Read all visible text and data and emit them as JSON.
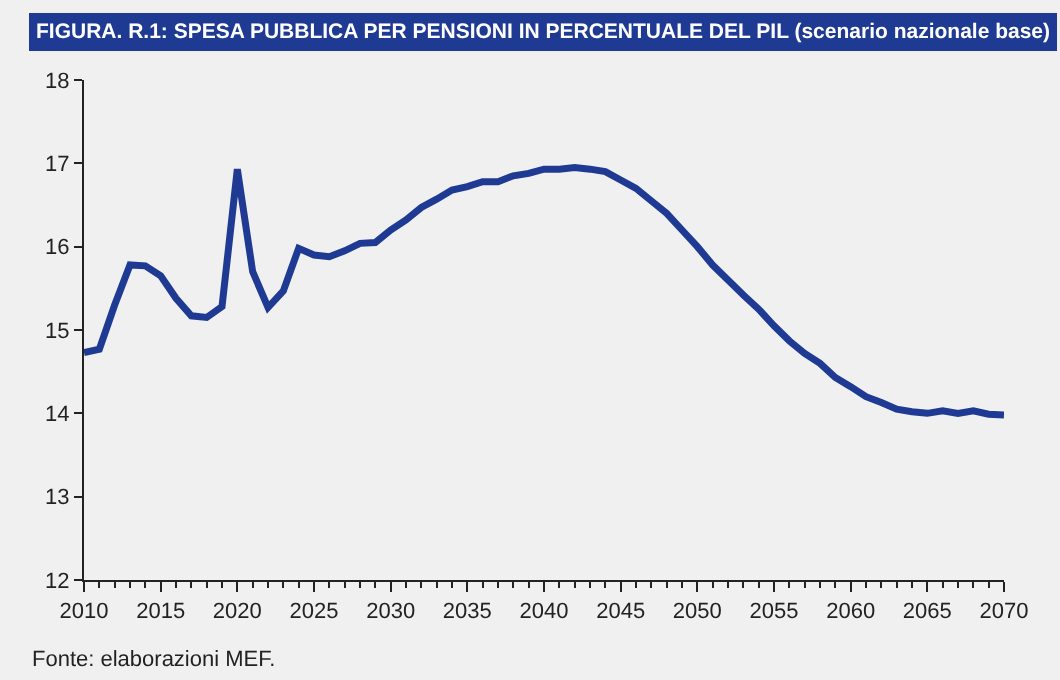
{
  "chart_data": {
    "type": "line",
    "title": "FIGURA. R.1: SPESA PUBBLICA PER PENSIONI IN PERCENTUALE DEL PIL (scenario nazionale base)",
    "x": [
      2010,
      2011,
      2012,
      2013,
      2014,
      2015,
      2016,
      2017,
      2018,
      2019,
      2020,
      2021,
      2022,
      2023,
      2024,
      2025,
      2026,
      2027,
      2028,
      2029,
      2030,
      2031,
      2032,
      2033,
      2034,
      2035,
      2036,
      2037,
      2038,
      2039,
      2040,
      2041,
      2042,
      2043,
      2044,
      2045,
      2046,
      2047,
      2048,
      2049,
      2050,
      2051,
      2052,
      2053,
      2054,
      2055,
      2056,
      2057,
      2058,
      2059,
      2060,
      2061,
      2062,
      2063,
      2064,
      2065,
      2066,
      2067,
      2068,
      2069,
      2070
    ],
    "series": [
      {
        "color": "#1f3a93",
        "values": [
          14.73,
          14.77,
          15.3,
          15.78,
          15.77,
          15.65,
          15.38,
          15.17,
          15.15,
          15.28,
          16.93,
          15.7,
          15.27,
          15.47,
          15.98,
          15.9,
          15.88,
          15.95,
          16.04,
          16.05,
          16.2,
          16.32,
          16.47,
          16.57,
          16.68,
          16.72,
          16.78,
          16.78,
          16.85,
          16.88,
          16.93,
          16.93,
          16.95,
          16.93,
          16.9,
          16.8,
          16.7,
          16.55,
          16.4,
          16.2,
          16.0,
          15.78,
          15.6,
          15.42,
          15.25,
          15.05,
          14.87,
          14.72,
          14.6,
          14.43,
          14.32,
          14.2,
          14.13,
          14.05,
          14.02,
          14.0,
          14.03,
          14.0,
          14.03,
          13.99,
          13.98
        ]
      }
    ],
    "xlim": [
      2010,
      2070
    ],
    "xticks": [
      2010,
      2015,
      2020,
      2025,
      2030,
      2035,
      2040,
      2045,
      2050,
      2055,
      2060,
      2065,
      2070
    ],
    "ylim": [
      12,
      18
    ],
    "yticks": [
      12,
      13,
      14,
      15,
      16,
      17,
      18
    ],
    "marker": "none",
    "line_style": "solid",
    "annotations": [
      "Fonte: elaborazioni MEF."
    ]
  }
}
